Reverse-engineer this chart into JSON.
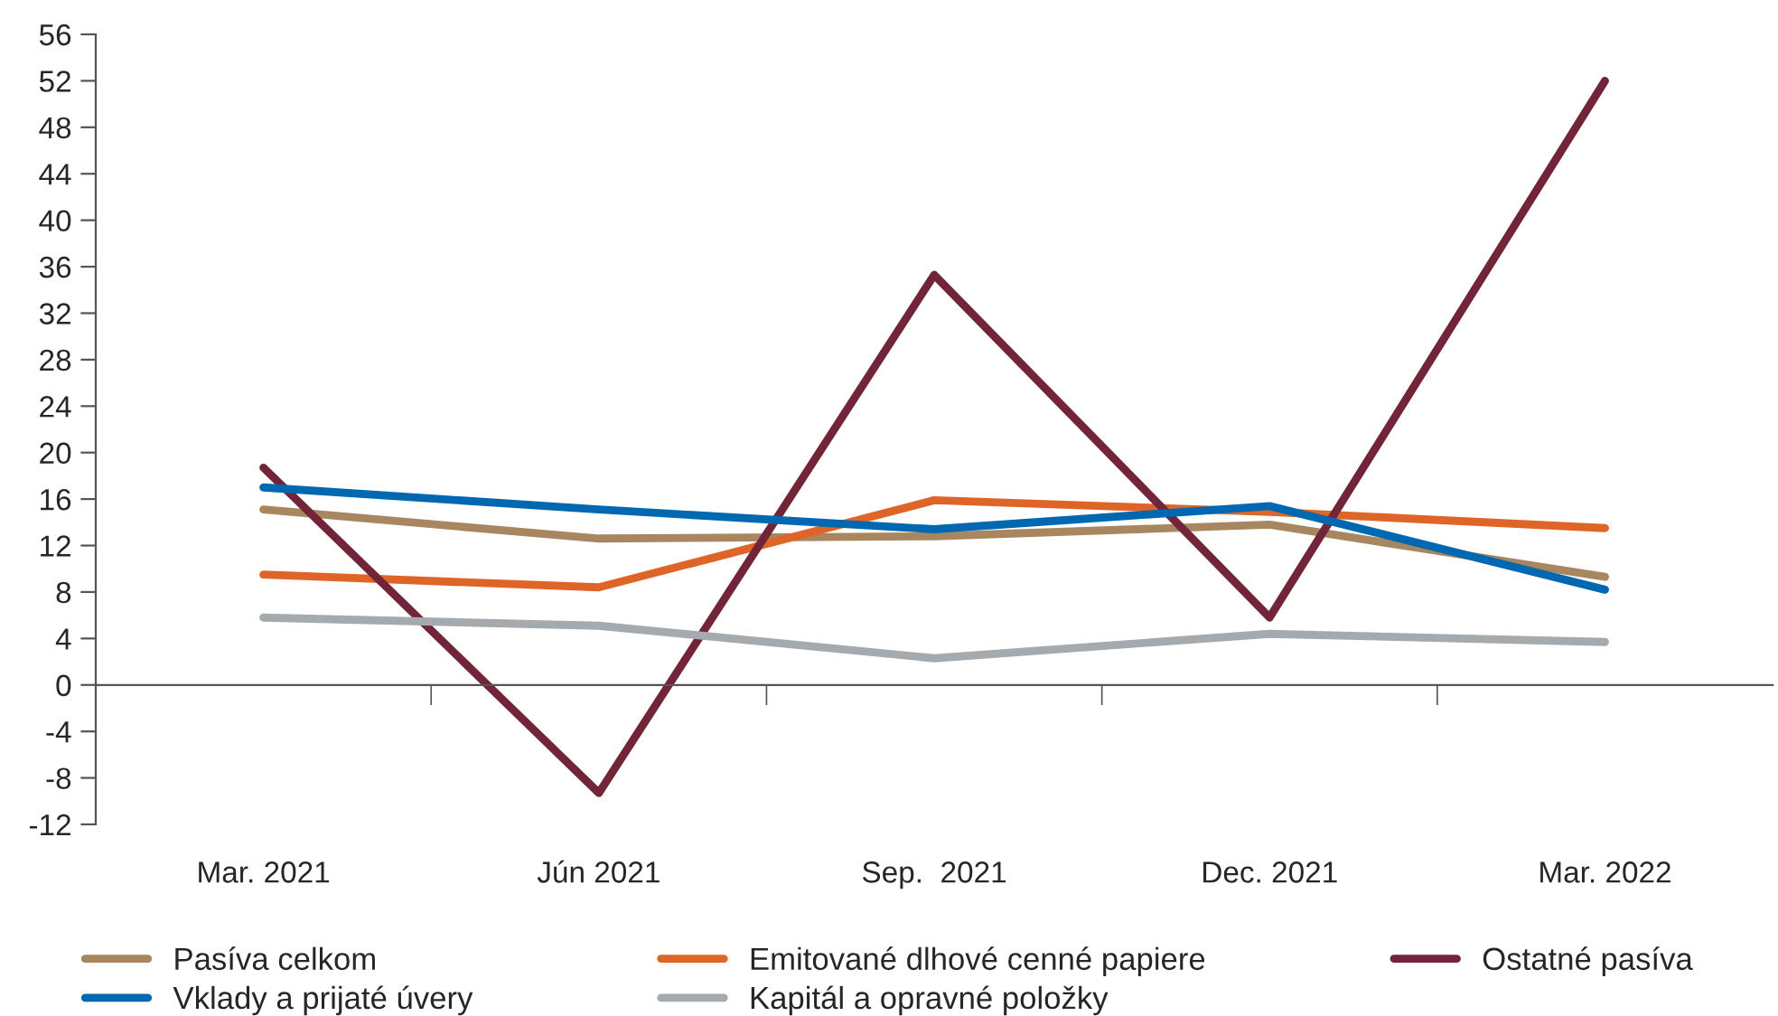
{
  "chart_data": {
    "type": "line",
    "categories": [
      "Mar. 2021",
      "Jún 2021",
      "Sep.  2021",
      "Dec. 2021",
      "Mar. 2022"
    ],
    "series": [
      {
        "name": "Pasíva celkom",
        "color": "#a88660",
        "values": [
          15.1,
          12.6,
          12.8,
          13.8,
          9.3
        ]
      },
      {
        "name": "Emitované dlhové cenné papiere",
        "color": "#de6527",
        "values": [
          9.5,
          8.4,
          15.9,
          14.9,
          13.5
        ]
      },
      {
        "name": "Ostatné pasíva",
        "color": "#722438",
        "values": [
          18.7,
          -9.3,
          35.3,
          5.8,
          52
        ]
      },
      {
        "name": "Vklady a prijaté úvery",
        "color": "#0068b0",
        "values": [
          17.0,
          15.1,
          13.4,
          15.4,
          8.2
        ]
      },
      {
        "name": "Kapitál a opravné položky",
        "color": "#a4aaad",
        "values": [
          5.8,
          5.1,
          2.3,
          4.4,
          3.7
        ]
      }
    ],
    "ylim": [
      -12,
      56
    ],
    "yticks": [
      -12,
      -8,
      -4,
      0,
      4,
      8,
      12,
      16,
      20,
      24,
      28,
      32,
      36,
      40,
      44,
      48,
      52,
      56
    ],
    "legend": "bottom",
    "marker": "none",
    "line_style": "solid"
  }
}
